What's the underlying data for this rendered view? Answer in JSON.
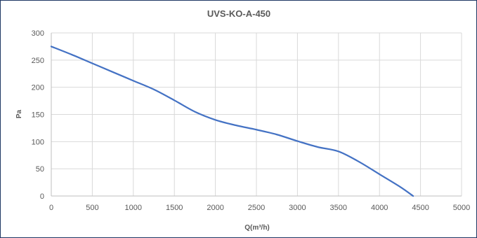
{
  "chart_data": {
    "type": "line",
    "title": "UVS-KO-A-450",
    "xlabel": "Q(m³/h)",
    "ylabel": "Pa",
    "xlim": [
      0,
      5000
    ],
    "ylim": [
      0,
      300
    ],
    "xticks": [
      "0",
      "500",
      "1000",
      "1500",
      "2000",
      "2500",
      "3000",
      "3500",
      "4000",
      "4500",
      "5000"
    ],
    "yticks": [
      "0",
      "50",
      "100",
      "150",
      "200",
      "250",
      "300"
    ],
    "grid": true,
    "legend": "none",
    "colors": {
      "series": "#4472c4",
      "grid": "#d9d9d9",
      "border": "#1f3864"
    },
    "series": [
      {
        "x": [
          0,
          250,
          500,
          750,
          1000,
          1250,
          1500,
          1750,
          2000,
          2250,
          2500,
          2750,
          3000,
          3250,
          3500,
          3750,
          4000,
          4250,
          4410
        ],
        "y": [
          275,
          260,
          244,
          228,
          212,
          196,
          176,
          155,
          140,
          130,
          122,
          113,
          101,
          90,
          82,
          63,
          40,
          17,
          0
        ]
      }
    ]
  }
}
